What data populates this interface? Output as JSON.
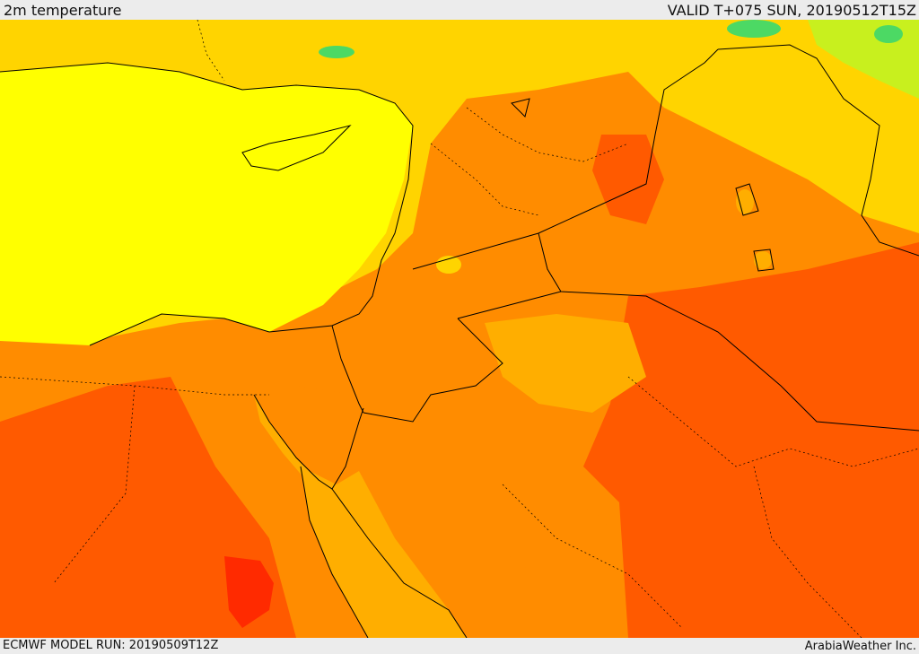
{
  "header": {
    "title": "2m temperature",
    "valid": "VALID T+075 SUN, 20190512T15Z"
  },
  "footer": {
    "model_run": "ECMWF MODEL RUN: 20190509T12Z",
    "credit": "ArabiaWeather Inc."
  },
  "map": {
    "field": "2m temperature",
    "colors": {
      "green": "#4cd964",
      "yellow_green": "#c8f01e",
      "yellow": "#ffff00",
      "gold": "#ffd400",
      "light_orange": "#ffae00",
      "orange": "#ff8c00",
      "dark_orange": "#ff5a00",
      "red": "#ff2a00",
      "border": "#000000"
    }
  }
}
